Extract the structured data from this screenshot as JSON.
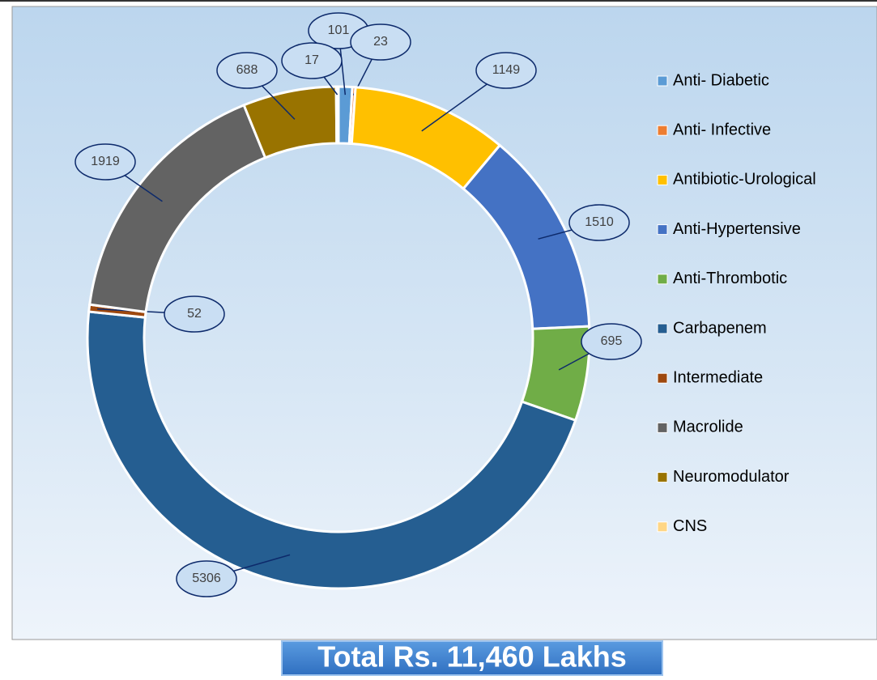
{
  "chart_data": {
    "type": "doughnut",
    "categories": [
      "Anti- Diabetic",
      "Anti- Infective",
      "Antibiotic-Urological",
      "Anti-Hypertensive",
      "Anti-Thrombotic",
      "Carbapenem",
      "Intermediate",
      "Macrolide",
      "Neuromodulator",
      "CNS"
    ],
    "values": [
      101,
      23,
      1149,
      1510,
      695,
      5306,
      52,
      1919,
      688,
      17
    ],
    "colors": [
      "#5b9bd5",
      "#ed7d31",
      "#ffc000",
      "#4472c4",
      "#70ad47",
      "#255e91",
      "#9e480e",
      "#636363",
      "#997300",
      "#ffd685"
    ],
    "legend": "right",
    "annotation": "Total Rs. 11,460 Lakhs"
  }
}
